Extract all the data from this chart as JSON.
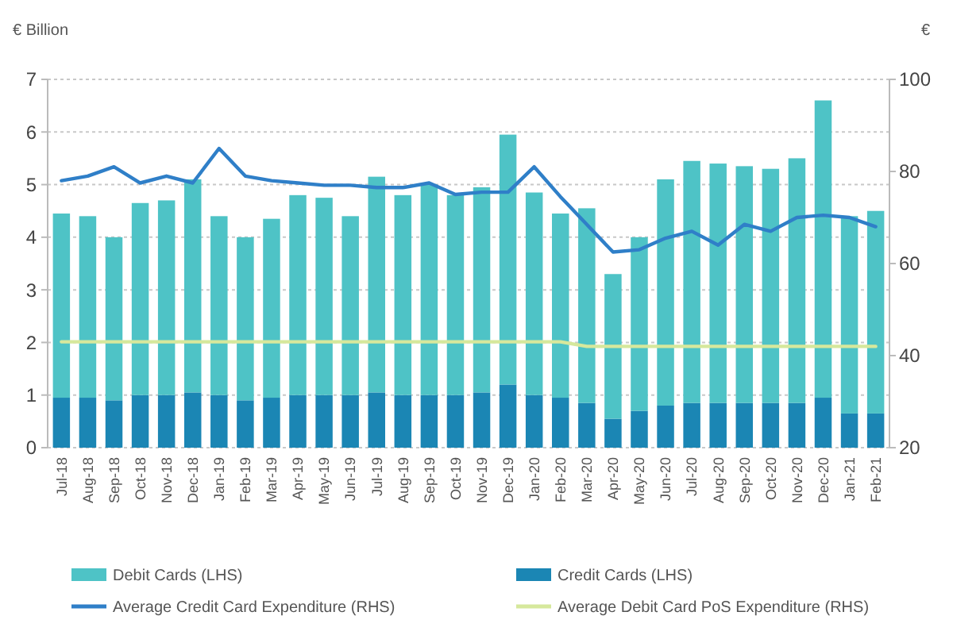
{
  "chart_data": {
    "type": "bar",
    "stacked": true,
    "ylabel": "€ Billion",
    "y2label": "€",
    "categories": [
      "Jul-18",
      "Aug-18",
      "Sep-18",
      "Oct-18",
      "Nov-18",
      "Dec-18",
      "Jan-19",
      "Feb-19",
      "Mar-19",
      "Apr-19",
      "May-19",
      "Jun-19",
      "Jul-19",
      "Aug-19",
      "Sep-19",
      "Oct-19",
      "Nov-19",
      "Dec-19",
      "Jan-20",
      "Feb-20",
      "Mar-20",
      "Apr-20",
      "May-20",
      "Jun-20",
      "Jul-20",
      "Aug-20",
      "Sep-20",
      "Oct-20",
      "Nov-20",
      "Dec-20",
      "Jan-21",
      "Feb-21"
    ],
    "series": [
      {
        "name": "Credit Cards (LHS)",
        "color": "#1b86b4",
        "values": [
          0.95,
          0.95,
          0.9,
          1.0,
          1.0,
          1.05,
          1.0,
          0.9,
          0.95,
          1.0,
          1.0,
          1.0,
          1.05,
          1.0,
          1.0,
          1.0,
          1.05,
          1.2,
          1.0,
          0.95,
          0.85,
          0.55,
          0.7,
          0.8,
          0.85,
          0.85,
          0.85,
          0.85,
          0.85,
          0.95,
          0.65,
          0.65
        ]
      },
      {
        "name": "Debit Cards (LHS)",
        "color": "#4ec3c6",
        "values": [
          3.5,
          3.45,
          3.1,
          3.65,
          3.7,
          4.05,
          3.4,
          3.1,
          3.4,
          3.8,
          3.75,
          3.4,
          4.1,
          3.8,
          4.0,
          3.8,
          3.9,
          4.75,
          3.85,
          3.5,
          3.7,
          2.75,
          3.3,
          4.3,
          4.6,
          4.55,
          4.5,
          4.45,
          4.65,
          5.65,
          3.75,
          3.85
        ]
      },
      {
        "name": "Average Credit Card Expenditure (RHS)",
        "type": "line",
        "axis": "y2",
        "color": "#2f7fc8",
        "values": [
          78,
          79,
          81,
          77.5,
          79,
          77.5,
          85,
          79,
          78,
          77.5,
          77,
          77,
          76.5,
          76.5,
          77.5,
          75,
          75.5,
          75.5,
          81,
          74.5,
          68.5,
          62.5,
          63,
          65.5,
          67,
          64,
          68.5,
          67,
          70,
          70.5,
          70,
          68
        ]
      },
      {
        "name": "Average Debit Card PoS Expenditure (RHS)",
        "type": "line",
        "axis": "y2",
        "color": "#d6e89c",
        "values": [
          43,
          43,
          43,
          43,
          43,
          43,
          43,
          43,
          43,
          43,
          43,
          43,
          43,
          43,
          43,
          43,
          43,
          43,
          43,
          43,
          42,
          42,
          42,
          42,
          42,
          42,
          42,
          42,
          42,
          42,
          42,
          42
        ]
      }
    ],
    "ylim": [
      0,
      7
    ],
    "yticks": [
      0,
      1,
      2,
      3,
      4,
      5,
      6,
      7
    ],
    "y2lim": [
      20,
      100
    ],
    "y2ticks": [
      20,
      40,
      60,
      80,
      100
    ],
    "grid": "y",
    "legend": "bottom",
    "line_style": "solid",
    "marker": "none"
  }
}
